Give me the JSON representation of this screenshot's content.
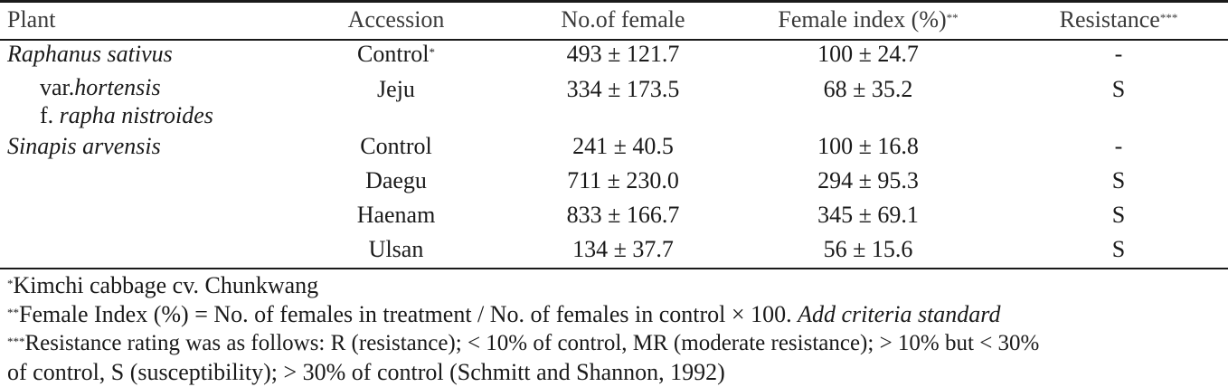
{
  "table": {
    "headers": {
      "plant": "Plant",
      "accession": "Accession",
      "no_female": "No.of female",
      "female_index": "Female index (%)",
      "female_index_mark": "**",
      "resistance": "Resistance",
      "resistance_mark": "***"
    },
    "rows": [
      {
        "plant": "Raphanus sativus",
        "accession": "Control",
        "accession_mark": "*",
        "no_female": "493 ± 121.7",
        "female_index": "100 ± 24.7",
        "resistance": "-"
      },
      {
        "plant_pre": "var.",
        "plant_it": "hortensis",
        "accession": "Jeju",
        "no_female": "334 ± 173.5",
        "female_index": "68 ± 35.2",
        "resistance": "S"
      },
      {
        "plant_pre": "f. ",
        "plant_it": "rapha nistroides"
      },
      {
        "plant": "Sinapis arvensis",
        "accession": "Control",
        "no_female": "241 ± 40.5",
        "female_index": "100 ± 16.8",
        "resistance": "-"
      },
      {
        "accession": "Daegu",
        "no_female": "711 ± 230.0",
        "female_index": "294 ± 95.3",
        "resistance": "S"
      },
      {
        "accession": "Haenam",
        "no_female": "833 ± 166.7",
        "female_index": "345 ± 69.1",
        "resistance": "S"
      },
      {
        "accession": "Ulsan",
        "no_female": "134 ± 37.7",
        "female_index": "56 ± 15.6",
        "resistance": "S"
      }
    ]
  },
  "footnotes": {
    "f1_mark": "*",
    "f1_text": "Kimchi cabbage cv. Chunkwang",
    "f2_mark": "**",
    "f2_text": "Female Index (%) = No. of females in treatment / No. of females in control × 100. ",
    "f2_italic": "Add criteria standard",
    "f3_mark": "***",
    "f3_text": "Resistance rating was as follows: R (resistance); < 10% of control, MR (moderate resistance); > 10% but < 30%",
    "f4_text": "of control, S (susceptibility); > 30% of control (Schmitt and Shannon, 1992)"
  }
}
